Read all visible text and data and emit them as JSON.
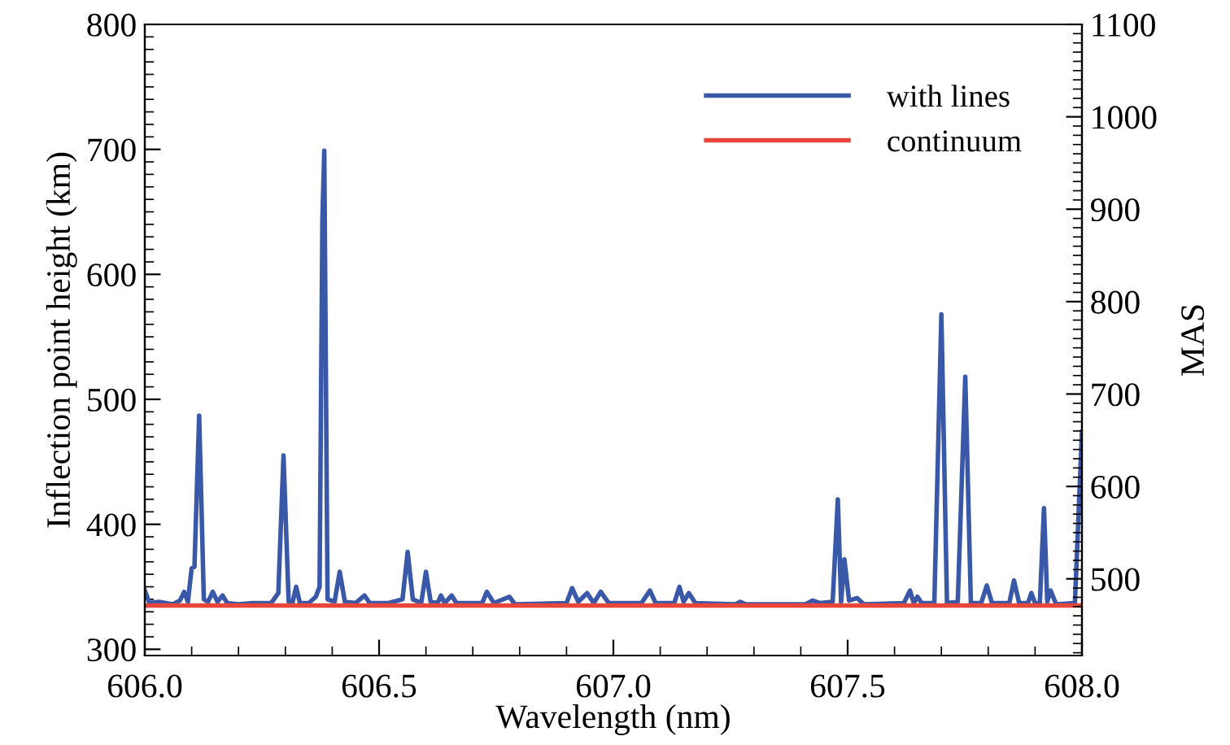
{
  "chart_data": {
    "type": "line",
    "xlabel": "Wavelength (nm)",
    "ylabel": "Inflection point height (km)",
    "y2label": "MAS",
    "xlim": [
      606.0,
      608.0
    ],
    "xticks": [
      {
        "value": 606.0,
        "label": "606.0"
      },
      {
        "value": 606.5,
        "label": "606.5"
      },
      {
        "value": 607.0,
        "label": "607.0"
      },
      {
        "value": 607.5,
        "label": "607.5"
      },
      {
        "value": 608.0,
        "label": "608.0"
      }
    ],
    "ylim": [
      295,
      800
    ],
    "yticks": [
      300,
      400,
      500,
      600,
      700,
      800
    ],
    "y2lim": [
      417,
      1100
    ],
    "y2ticks": [
      500,
      600,
      700,
      800,
      900,
      1000,
      1100
    ],
    "legend": "top right",
    "line_style": "solid",
    "marker": "none",
    "grid": false,
    "series": [
      {
        "name": "with lines",
        "color": "#3a58a8",
        "x": [
          606.0,
          606.01,
          606.03,
          606.06,
          606.075,
          606.084,
          606.092,
          606.1,
          606.106,
          606.116,
          606.126,
          606.135,
          606.145,
          606.155,
          606.166,
          606.176,
          606.2,
          606.23,
          606.27,
          606.285,
          606.296,
          606.307,
          606.315,
          606.323,
          606.331,
          606.35,
          606.365,
          606.373,
          606.379,
          606.383,
          606.39,
          606.405,
          606.416,
          606.427,
          606.45,
          606.469,
          606.48,
          606.52,
          606.55,
          606.561,
          606.572,
          606.59,
          606.6,
          606.61,
          606.625,
          606.632,
          606.64,
          606.655,
          606.665,
          606.72,
          606.73,
          606.745,
          606.778,
          606.79,
          606.9,
          606.912,
          606.925,
          606.944,
          606.958,
          606.973,
          606.99,
          607.06,
          607.078,
          607.09,
          607.13,
          607.141,
          607.15,
          607.161,
          607.175,
          607.26,
          607.271,
          607.282,
          607.41,
          607.425,
          607.44,
          607.468,
          607.479,
          607.486,
          607.493,
          607.503,
          607.52,
          607.535,
          607.62,
          607.633,
          607.641,
          607.649,
          607.658,
          607.685,
          607.7,
          607.712,
          607.735,
          607.751,
          607.763,
          607.785,
          607.797,
          607.808,
          607.845,
          607.855,
          607.866,
          607.885,
          607.892,
          607.9,
          607.91,
          607.919,
          607.926,
          607.933,
          607.945,
          607.985,
          608.0
        ],
        "values": [
          347,
          337,
          338,
          336,
          339,
          346,
          338,
          365,
          366,
          487,
          340,
          338,
          346,
          338,
          343,
          337,
          336,
          337,
          337,
          345,
          455,
          338,
          337,
          350,
          337,
          337,
          342,
          350,
          643,
          699,
          340,
          338,
          362,
          338,
          337,
          343,
          337,
          337,
          340,
          378,
          340,
          337,
          362,
          338,
          337,
          343,
          337,
          343,
          337,
          337,
          346,
          337,
          342,
          336,
          337,
          349,
          338,
          345,
          337,
          346,
          337,
          337,
          347,
          337,
          337,
          350,
          338,
          345,
          337,
          336,
          338,
          336,
          336,
          339,
          337,
          338,
          420,
          338,
          372,
          339,
          341,
          336,
          337,
          347,
          337,
          342,
          337,
          337,
          568,
          337,
          338,
          518,
          337,
          337,
          351,
          337,
          337,
          355,
          337,
          337,
          345,
          337,
          336,
          413,
          338,
          347,
          336,
          337,
          474
        ]
      },
      {
        "name": "continuum",
        "color": "#e8463a",
        "x": [
          606.0,
          608.0
        ],
        "values": [
          335,
          335
        ]
      }
    ]
  }
}
